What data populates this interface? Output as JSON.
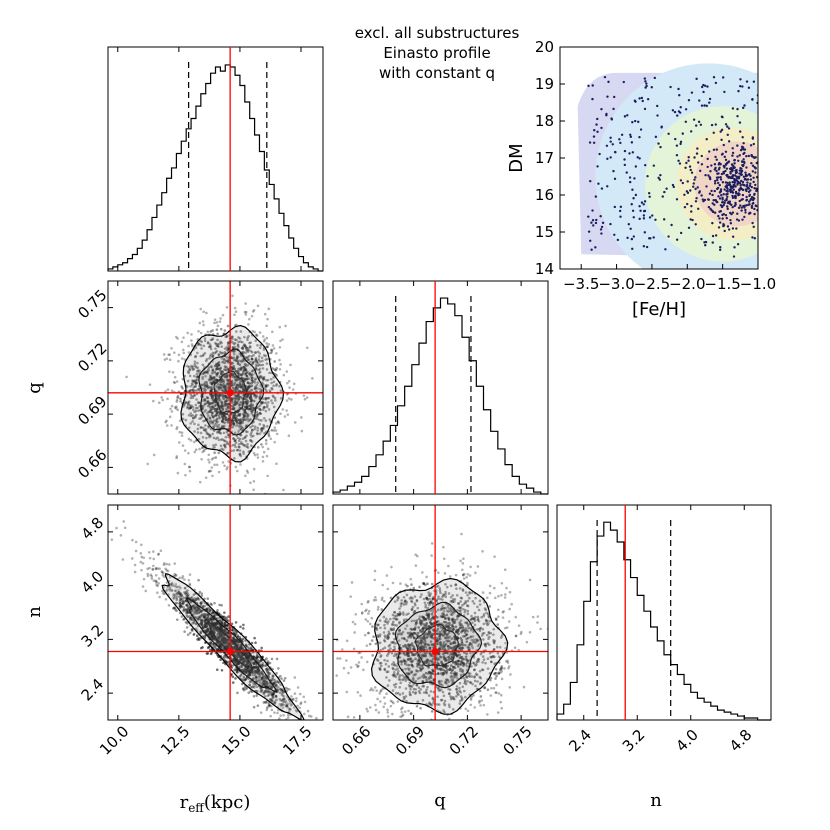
{
  "title_lines": [
    "excl. all substructures",
    "Einasto profile",
    "with constant q"
  ],
  "chart_data": [
    {
      "type": "histogram",
      "panel": "r_eff marginal",
      "bins": [
        9.6,
        9.8,
        10.0,
        10.2,
        10.4,
        10.6,
        10.8,
        11.0,
        11.2,
        11.4,
        11.6,
        11.8,
        12.0,
        12.2,
        12.4,
        12.6,
        12.8,
        13.0,
        13.2,
        13.4,
        13.6,
        13.8,
        14.0,
        14.2,
        14.4,
        14.6,
        14.8,
        15.0,
        15.2,
        15.4,
        15.6,
        15.8,
        16.0,
        16.2,
        16.4,
        16.6,
        16.8,
        17.0,
        17.2,
        17.4,
        17.6,
        17.8,
        18.0,
        18.2,
        18.4
      ],
      "counts": [
        1,
        2,
        3,
        4,
        6,
        8,
        11,
        15,
        20,
        26,
        32,
        38,
        45,
        50,
        57,
        63,
        69,
        74,
        80,
        86,
        91,
        96,
        99,
        97,
        100,
        99,
        95,
        90,
        82,
        74,
        66,
        58,
        49,
        42,
        35,
        28,
        22,
        16,
        11,
        7,
        4,
        2,
        1,
        0
      ],
      "quantiles": [
        12.9,
        14.6,
        16.1
      ],
      "truth": 14.6,
      "xlim": [
        9.6,
        18.4
      ]
    },
    {
      "type": "histogram",
      "panel": "q marginal",
      "bins": [
        0.645,
        0.649,
        0.653,
        0.657,
        0.661,
        0.665,
        0.669,
        0.673,
        0.677,
        0.681,
        0.685,
        0.689,
        0.693,
        0.697,
        0.701,
        0.705,
        0.709,
        0.713,
        0.717,
        0.721,
        0.725,
        0.729,
        0.733,
        0.737,
        0.741,
        0.745,
        0.749,
        0.753,
        0.757,
        0.761,
        0.765
      ],
      "counts": [
        1,
        2,
        4,
        6,
        9,
        14,
        20,
        27,
        35,
        45,
        55,
        66,
        77,
        88,
        95,
        100,
        97,
        91,
        80,
        68,
        55,
        43,
        32,
        23,
        15,
        9,
        5,
        3,
        1,
        0
      ],
      "quantiles": [
        0.68,
        0.702,
        0.722
      ],
      "truth": 0.702,
      "xlim": [
        0.645,
        0.765
      ]
    },
    {
      "type": "histogram",
      "panel": "n marginal",
      "bins": [
        2.0,
        2.1,
        2.2,
        2.3,
        2.4,
        2.5,
        2.6,
        2.7,
        2.8,
        2.9,
        3.0,
        3.1,
        3.2,
        3.3,
        3.4,
        3.5,
        3.6,
        3.7,
        3.8,
        3.9,
        4.0,
        4.1,
        4.2,
        4.3,
        4.4,
        4.5,
        4.6,
        4.7,
        4.8,
        4.9,
        5.0,
        5.1,
        5.2
      ],
      "counts": [
        3,
        8,
        19,
        38,
        60,
        80,
        93,
        100,
        96,
        90,
        81,
        72,
        63,
        55,
        47,
        40,
        33,
        28,
        23,
        18,
        14,
        11,
        9,
        7,
        5,
        4,
        3,
        2,
        1,
        1,
        0,
        0
      ],
      "quantiles": [
        2.6,
        3.02,
        3.7
      ],
      "truth": 3.02,
      "xlim": [
        2.0,
        5.2
      ]
    },
    {
      "type": "scatter-contour",
      "panel": "q vs r_eff",
      "x_param": "r_eff",
      "y_param": "q",
      "center": [
        14.6,
        0.702
      ],
      "sigma": [
        1.05,
        0.019
      ],
      "correlation": 0.0,
      "truth": [
        14.6,
        0.702
      ],
      "xlim": [
        9.6,
        18.4
      ],
      "ylim": [
        0.645,
        0.765
      ]
    },
    {
      "type": "scatter-contour",
      "panel": "n vs r_eff",
      "x_param": "r_eff",
      "y_param": "n",
      "center": [
        14.6,
        3.1
      ],
      "sigma": [
        1.45,
        0.55
      ],
      "correlation": -0.95,
      "truth": [
        14.6,
        3.02
      ],
      "xlim": [
        9.6,
        18.4
      ],
      "ylim": [
        2.0,
        5.2
      ]
    },
    {
      "type": "scatter-contour",
      "panel": "n vs q",
      "x_param": "q",
      "y_param": "n",
      "center": [
        0.703,
        3.1
      ],
      "sigma": [
        0.019,
        0.5
      ],
      "correlation": 0.05,
      "truth": [
        0.702,
        3.02
      ],
      "xlim": [
        0.645,
        0.765
      ],
      "ylim": [
        2.0,
        5.2
      ]
    },
    {
      "type": "scatter",
      "panel": "inset DM vs [Fe/H]",
      "xlabel": "[Fe/H]",
      "ylabel": "DM",
      "xlim": [
        -3.8,
        -1.0
      ],
      "ylim": [
        14,
        20
      ],
      "xticks": [
        "−3.5",
        "−3.0",
        "−2.5",
        "−2.0",
        "−1.5",
        "−1.0"
      ],
      "yticks": [
        "14",
        "15",
        "16",
        "17",
        "18",
        "19",
        "20"
      ],
      "region_colors": [
        "#d7d8f2",
        "#d4e9f7",
        "#e3f4d8",
        "#f4eec6",
        "#f1d6c8"
      ]
    }
  ],
  "axes": {
    "x_labels": [
      "r_eff(kpc)",
      "q",
      "n"
    ],
    "y_labels": [
      "q",
      "n"
    ],
    "reff_ticks": [
      "10.0",
      "12.5",
      "15.0",
      "17.5"
    ],
    "q_ticks": [
      "0.66",
      "0.69",
      "0.72",
      "0.75"
    ],
    "n_ticks": [
      "2.4",
      "3.2",
      "4.0",
      "4.8"
    ]
  },
  "colors": {
    "truth": "#ff0000",
    "points": "#000000",
    "inset_points": "#1a1f5e"
  }
}
